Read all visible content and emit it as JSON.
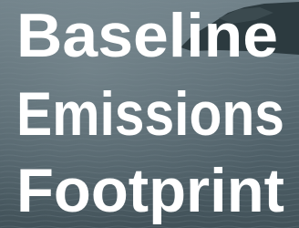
{
  "title_lines": [
    "Baseline",
    "Emissions",
    "Footprint"
  ]
}
